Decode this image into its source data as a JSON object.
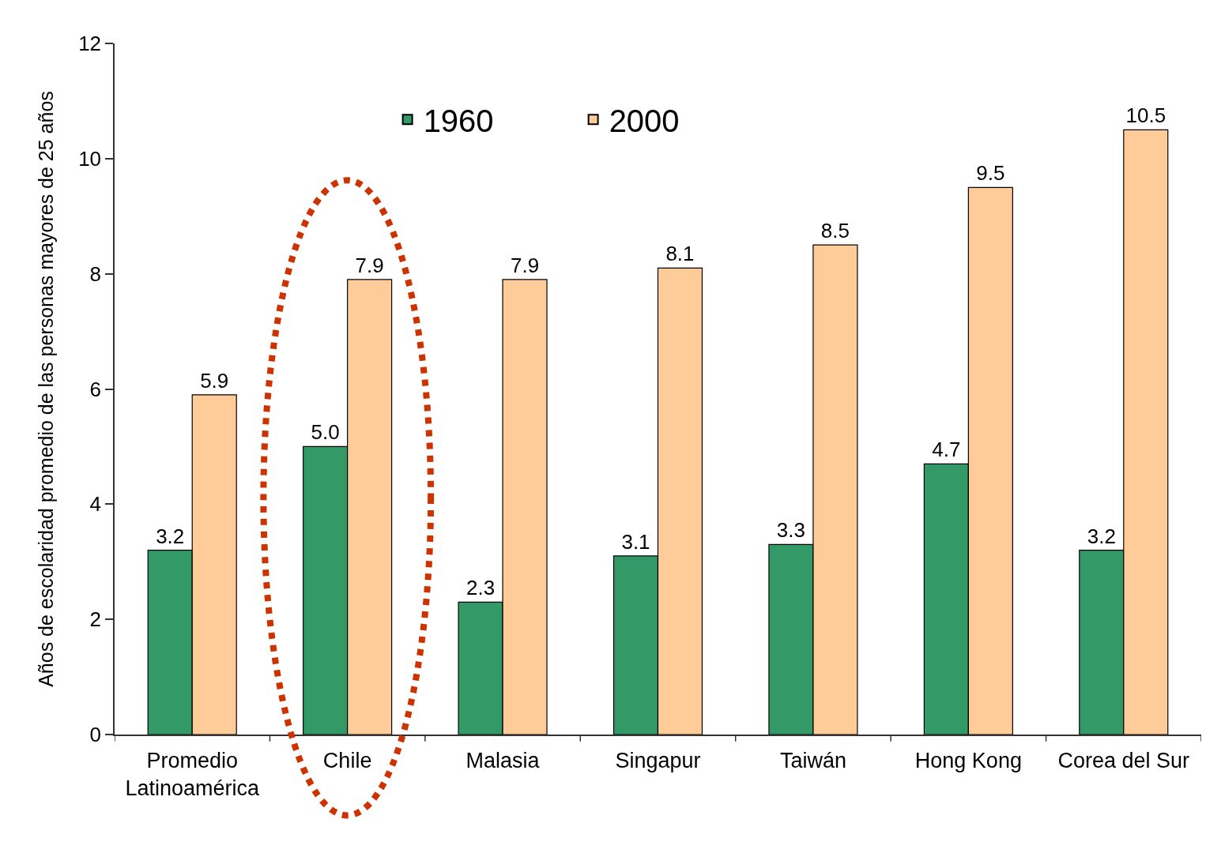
{
  "chart_data": {
    "type": "bar",
    "ylabel": "Años de escolaridad promedio de las personas mayores de 25 años",
    "categories": [
      "Promedio Latinoamérica",
      "Chile",
      "Malasia",
      "Singapur",
      "Taiwán",
      "Hong Kong",
      "Corea del Sur"
    ],
    "series": [
      {
        "name": "1960",
        "color": "#339966",
        "values": [
          3.2,
          5.0,
          2.3,
          3.1,
          3.3,
          4.7,
          3.2
        ],
        "value_labels": [
          "3.2",
          "5.0",
          "2.3",
          "3.1",
          "3.3",
          "4.7",
          "3.2"
        ]
      },
      {
        "name": "2000",
        "color": "#ffcc99",
        "values": [
          5.9,
          7.9,
          7.9,
          8.1,
          8.5,
          9.5,
          10.5
        ],
        "value_labels": [
          "5.9",
          "7.9",
          "7.9",
          "8.1",
          "8.5",
          "9.5",
          "10.5"
        ]
      }
    ],
    "ylim": [
      0,
      12
    ],
    "yticks": [
      0,
      2,
      4,
      6,
      8,
      10,
      12
    ],
    "grid": false,
    "legend": "top"
  }
}
